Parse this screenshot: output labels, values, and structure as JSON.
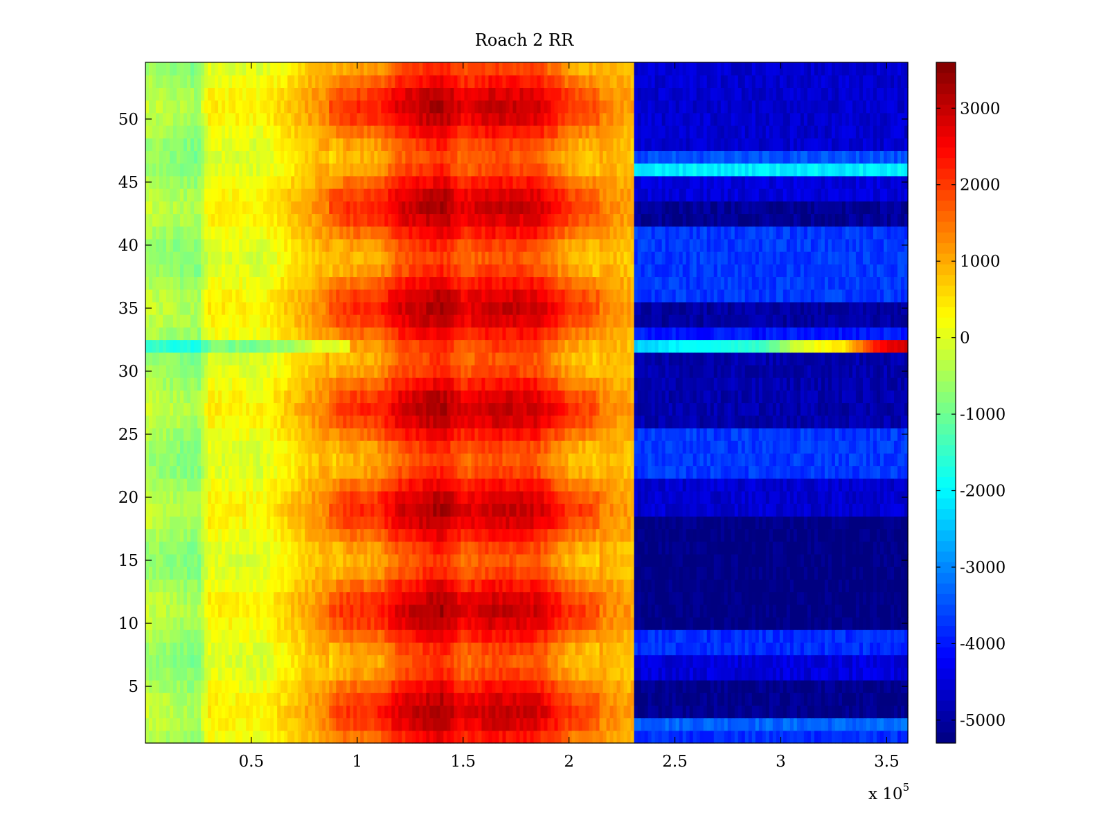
{
  "chart_data": {
    "type": "heatmap",
    "title": "Roach 2 RR",
    "xlabel": "",
    "ylabel": "",
    "x_multiplier": {
      "base": "x 10",
      "exponent": "5"
    },
    "xlim": [
      0,
      3.6
    ],
    "ylim": [
      0.5,
      54.5
    ],
    "x_ticks": [
      0.5,
      1,
      1.5,
      2,
      2.5,
      3,
      3.5
    ],
    "x_tick_labels": [
      "0.5",
      "1",
      "1.5",
      "2",
      "2.5",
      "3",
      "3.5"
    ],
    "y_ticks": [
      5,
      10,
      15,
      20,
      25,
      30,
      35,
      40,
      45,
      50
    ],
    "y_tick_labels": [
      "5",
      "10",
      "15",
      "20",
      "25",
      "30",
      "35",
      "40",
      "45",
      "50"
    ],
    "rows": 54,
    "colormap": "jet",
    "colorbar": {
      "range": [
        -5300,
        3600
      ],
      "ticks": [
        3000,
        2000,
        1000,
        0,
        -1000,
        -2000,
        -3000,
        -4000,
        -5000
      ],
      "tick_labels": [
        "3000",
        "2000",
        "1000",
        "0",
        "-1000",
        "-2000",
        "-3000",
        "-4000",
        "-5000"
      ]
    },
    "column_profile": {
      "x": [
        0.0,
        0.25,
        0.3,
        0.55,
        0.95,
        1.1,
        1.2,
        1.4,
        1.5,
        1.65,
        1.85,
        2.0,
        2.2,
        2.3,
        2.31
      ],
      "value": [
        -400,
        -700,
        200,
        100,
        1500,
        1600,
        2200,
        2700,
        2100,
        2400,
        2300,
        1500,
        1100,
        900,
        -4500
      ]
    },
    "row_pattern_amplitude": 600,
    "low_region": {
      "x_start": 2.31,
      "band_rows": [
        {
          "rows": [
            1,
            1
          ],
          "value": -3800
        },
        {
          "rows": [
            2,
            2
          ],
          "value": -3300
        },
        {
          "rows": [
            3,
            5
          ],
          "value": -5200
        },
        {
          "rows": [
            6,
            7
          ],
          "value": -4500
        },
        {
          "rows": [
            8,
            9
          ],
          "value": -3800
        },
        {
          "rows": [
            10,
            18
          ],
          "value": -5300
        },
        {
          "rows": [
            19,
            21
          ],
          "value": -4600
        },
        {
          "rows": [
            22,
            25
          ],
          "value": -3700
        },
        {
          "rows": [
            26,
            31
          ],
          "value": -4900
        },
        {
          "rows": [
            32,
            32
          ],
          "value": -2400
        },
        {
          "rows": [
            33,
            33
          ],
          "value": -4000
        },
        {
          "rows": [
            34,
            35
          ],
          "value": -5000
        },
        {
          "rows": [
            36,
            41
          ],
          "value": -3700
        },
        {
          "rows": [
            42,
            43
          ],
          "value": -5100
        },
        {
          "rows": [
            44,
            45
          ],
          "value": -4500
        },
        {
          "rows": [
            46,
            46
          ],
          "value": -2100
        },
        {
          "rows": [
            47,
            47
          ],
          "value": -3500
        },
        {
          "rows": [
            48,
            54
          ],
          "value": -4600
        }
      ],
      "anomaly_row": {
        "row": 32,
        "x": [
          2.31,
          2.5,
          2.9,
          3.1,
          3.3,
          3.45,
          3.6
        ],
        "value": [
          -2400,
          -2100,
          -1500,
          0,
          500,
          2300,
          3000
        ]
      }
    },
    "anomaly_row_left": {
      "row": 32,
      "x_range": [
        0,
        0.97
      ],
      "offset": -900
    }
  }
}
